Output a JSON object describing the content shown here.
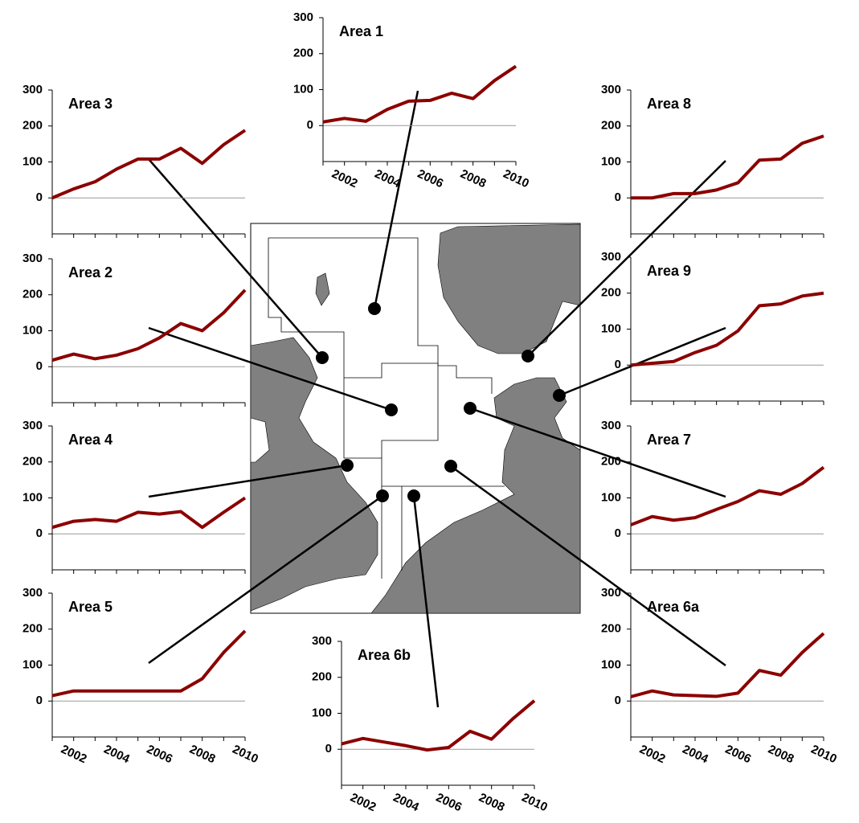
{
  "chart_data": [
    {
      "type": "line",
      "title": "Area 1",
      "x": [
        2001,
        2002,
        2003,
        2004,
        2005,
        2006,
        2007,
        2008,
        2009,
        2010
      ],
      "values": [
        10,
        20,
        12,
        45,
        68,
        70,
        90,
        75,
        125,
        165
      ],
      "color": "#8b0000",
      "xlim": [
        2001,
        2010
      ],
      "ylim": [
        -100,
        300
      ],
      "yticks": [
        0,
        100,
        200,
        300
      ],
      "xticks": [
        2002,
        2004,
        2006,
        2008,
        2010
      ]
    },
    {
      "type": "line",
      "title": "Area 3",
      "x": [
        2001,
        2002,
        2003,
        2004,
        2005,
        2006,
        2007,
        2008,
        2009,
        2010
      ],
      "values": [
        0,
        25,
        45,
        80,
        108,
        108,
        138,
        96,
        148,
        188
      ],
      "color": "#8b0000",
      "xlim": [
        2001,
        2010
      ],
      "ylim": [
        -100,
        300
      ],
      "yticks": [
        0,
        100,
        200,
        300
      ]
    },
    {
      "type": "line",
      "title": "Area 2",
      "x": [
        2001,
        2002,
        2003,
        2004,
        2005,
        2006,
        2007,
        2008,
        2009,
        2010
      ],
      "values": [
        18,
        35,
        22,
        32,
        50,
        80,
        120,
        100,
        150,
        213
      ],
      "color": "#8b0000",
      "xlim": [
        2001,
        2010
      ],
      "ylim": [
        -100,
        300
      ],
      "yticks": [
        0,
        100,
        200,
        300
      ]
    },
    {
      "type": "line",
      "title": "Area 4",
      "x": [
        2001,
        2002,
        2003,
        2004,
        2005,
        2006,
        2007,
        2008,
        2009,
        2010
      ],
      "values": [
        18,
        35,
        40,
        35,
        60,
        55,
        62,
        18,
        60,
        100
      ],
      "color": "#8b0000",
      "xlim": [
        2001,
        2010
      ],
      "ylim": [
        -100,
        300
      ],
      "yticks": [
        0,
        100,
        200,
        300
      ]
    },
    {
      "type": "line",
      "title": "Area 5",
      "x": [
        2001,
        2002,
        2003,
        2004,
        2005,
        2006,
        2007,
        2008,
        2009,
        2010
      ],
      "values": [
        15,
        28,
        28,
        28,
        28,
        28,
        28,
        62,
        135,
        195
      ],
      "color": "#8b0000",
      "xlim": [
        2001,
        2010
      ],
      "ylim": [
        -100,
        300
      ],
      "yticks": [
        0,
        100,
        200,
        300
      ],
      "xticks": [
        2002,
        2004,
        2006,
        2008,
        2010
      ]
    },
    {
      "type": "line",
      "title": "Area 6b",
      "x": [
        2001,
        2002,
        2003,
        2004,
        2005,
        2006,
        2007,
        2008,
        2009,
        2010
      ],
      "values": [
        15,
        30,
        20,
        10,
        -2,
        5,
        50,
        28,
        85,
        135
      ],
      "color": "#8b0000",
      "xlim": [
        2001,
        2010
      ],
      "ylim": [
        -100,
        300
      ],
      "yticks": [
        0,
        100,
        200,
        300
      ],
      "xticks": [
        2002,
        2004,
        2006,
        2008,
        2010
      ]
    },
    {
      "type": "line",
      "title": "Area 8",
      "x": [
        2001,
        2002,
        2003,
        2004,
        2005,
        2006,
        2007,
        2008,
        2009,
        2010
      ],
      "values": [
        0,
        0,
        12,
        12,
        22,
        42,
        105,
        108,
        152,
        172
      ],
      "color": "#8b0000",
      "xlim": [
        2001,
        2010
      ],
      "ylim": [
        -100,
        300
      ],
      "yticks": [
        0,
        100,
        200,
        300
      ]
    },
    {
      "type": "line",
      "title": "Area 9",
      "x": [
        2001,
        2002,
        2003,
        2004,
        2005,
        2006,
        2007,
        2008,
        2009,
        2010
      ],
      "values": [
        0,
        5,
        10,
        35,
        55,
        95,
        165,
        170,
        192,
        200
      ],
      "color": "#8b0000",
      "xlim": [
        2001,
        2010
      ],
      "ylim": [
        -100,
        300
      ],
      "yticks": [
        0,
        100,
        200,
        300
      ]
    },
    {
      "type": "line",
      "title": "Area 7",
      "x": [
        2001,
        2002,
        2003,
        2004,
        2005,
        2006,
        2007,
        2008,
        2009,
        2010
      ],
      "values": [
        25,
        48,
        38,
        45,
        68,
        90,
        120,
        110,
        140,
        185
      ],
      "color": "#8b0000",
      "xlim": [
        2001,
        2010
      ],
      "ylim": [
        -100,
        300
      ],
      "yticks": [
        0,
        100,
        200,
        300
      ]
    },
    {
      "type": "line",
      "title": "Area 6a",
      "x": [
        2001,
        2002,
        2003,
        2004,
        2005,
        2006,
        2007,
        2008,
        2009,
        2010
      ],
      "values": [
        12,
        28,
        17,
        15,
        13,
        22,
        85,
        72,
        135,
        188
      ],
      "color": "#8b0000",
      "xlim": [
        2001,
        2010
      ],
      "ylim": [
        -100,
        300
      ],
      "yticks": [
        0,
        100,
        200,
        300
      ],
      "xticks": [
        2002,
        2004,
        2006,
        2008,
        2010
      ]
    }
  ]
}
